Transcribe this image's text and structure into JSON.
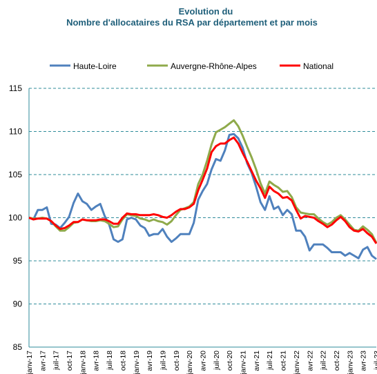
{
  "chart_data": {
    "type": "line",
    "title": "Evolution du",
    "subtitle": "Nombre d'allocataires du RSA par département et par mois",
    "categories": [
      "janv-17",
      null,
      null,
      "avr-17",
      null,
      null,
      "juil-17",
      null,
      null,
      "oct-17",
      null,
      null,
      "janv-18",
      null,
      null,
      "avr-18",
      null,
      null,
      "juil-18",
      null,
      null,
      "oct-18",
      null,
      null,
      "janv-19",
      null,
      null,
      "avr-19",
      null,
      null,
      "juil-19",
      null,
      null,
      "oct-19",
      null,
      null,
      "janv-20",
      null,
      null,
      "avr-20",
      null,
      null,
      "juil-20",
      null,
      null,
      "oct-20",
      null,
      null,
      "janv-21",
      null,
      null,
      "avr-21",
      null,
      null,
      "juil-21",
      null,
      null,
      "oct-21",
      null,
      null,
      "janv-22",
      null,
      null,
      "avr-22",
      null,
      null,
      "juil-22",
      null,
      null,
      "oct-22",
      null,
      null,
      "janv-23",
      null,
      null,
      "avr-23",
      null,
      null,
      "juil-23"
    ],
    "series": [
      {
        "name": "Haute-Loire",
        "color": "#4f81bd",
        "values": [
          100,
          99.8,
          100.9,
          100.9,
          101.2,
          99.3,
          99.2,
          98.8,
          99.4,
          100.1,
          101.7,
          102.8,
          101.9,
          101.6,
          100.9,
          101.3,
          101.6,
          100.2,
          99.2,
          97.5,
          97.2,
          97.5,
          99.8,
          100.0,
          99.8,
          99.1,
          98.8,
          97.9,
          98.1,
          98.1,
          98.7,
          97.8,
          97.2,
          97.6,
          98.1,
          98.1,
          98.1,
          99.4,
          102.1,
          103.1,
          103.9,
          105.6,
          106.8,
          106.6,
          107.8,
          109.6,
          109.7,
          109.2,
          108.1,
          106.3,
          105.2,
          103.6,
          101.8,
          100.9,
          102.5,
          101.0,
          101.3,
          100.3,
          100.9,
          100.4,
          98.5,
          98.5,
          97.8,
          96.2,
          96.9,
          96.9,
          96.9,
          96.5,
          96.0,
          96.0,
          96.0,
          95.6,
          95.9,
          95.6,
          95.3,
          96.3,
          96.6,
          95.6,
          95.2
        ]
      },
      {
        "name": "Auvergne-Rhône-Alpes",
        "color": "#8faa4b",
        "values": [
          100,
          99.9,
          99.9,
          100.0,
          99.9,
          99.6,
          99.0,
          98.5,
          98.5,
          98.9,
          99.4,
          99.5,
          99.8,
          99.7,
          99.6,
          99.6,
          99.7,
          99.6,
          99.3,
          98.9,
          99.0,
          99.8,
          100.4,
          100.3,
          100.2,
          99.9,
          99.8,
          99.6,
          99.8,
          99.6,
          99.5,
          99.2,
          99.6,
          100.3,
          100.9,
          101.1,
          101.3,
          101.8,
          103.9,
          105.0,
          106.6,
          108.5,
          109.9,
          110.2,
          110.5,
          110.9,
          111.3,
          110.6,
          109.5,
          108.2,
          107.0,
          105.6,
          104.0,
          102.8,
          104.2,
          103.8,
          103.5,
          103.0,
          103.1,
          102.4,
          101.2,
          100.6,
          100.5,
          100.4,
          100.4,
          99.9,
          99.5,
          99.2,
          99.5,
          100.0,
          100.3,
          99.8,
          99.2,
          98.6,
          98.5,
          99.0,
          98.6,
          98.1,
          97.1
        ]
      },
      {
        "name": "National",
        "color": "#ff0000",
        "values": [
          100,
          99.8,
          99.9,
          99.9,
          99.9,
          99.6,
          99.1,
          98.7,
          98.8,
          99.1,
          99.5,
          99.5,
          99.8,
          99.7,
          99.7,
          99.7,
          99.8,
          99.8,
          99.6,
          99.3,
          99.3,
          100.0,
          100.5,
          100.4,
          100.4,
          100.3,
          100.3,
          100.3,
          100.4,
          100.3,
          100.1,
          100.0,
          100.3,
          100.7,
          101.0,
          101.0,
          101.2,
          101.6,
          103.2,
          104.4,
          105.7,
          107.6,
          108.3,
          108.6,
          108.6,
          109.0,
          109.3,
          108.6,
          107.5,
          106.5,
          105.4,
          104.3,
          103.4,
          102.3,
          103.6,
          103.1,
          102.8,
          102.3,
          102.4,
          102.0,
          100.9,
          99.9,
          100.2,
          100.1,
          100.0,
          99.6,
          99.3,
          98.9,
          99.2,
          99.7,
          100.1,
          99.6,
          98.9,
          98.5,
          98.4,
          98.7,
          98.2,
          97.8,
          97.0
        ]
      }
    ],
    "ylim": [
      85,
      115
    ],
    "yticks": [
      85,
      90,
      95,
      100,
      105,
      110,
      115
    ],
    "grid": true,
    "legend": "top"
  }
}
